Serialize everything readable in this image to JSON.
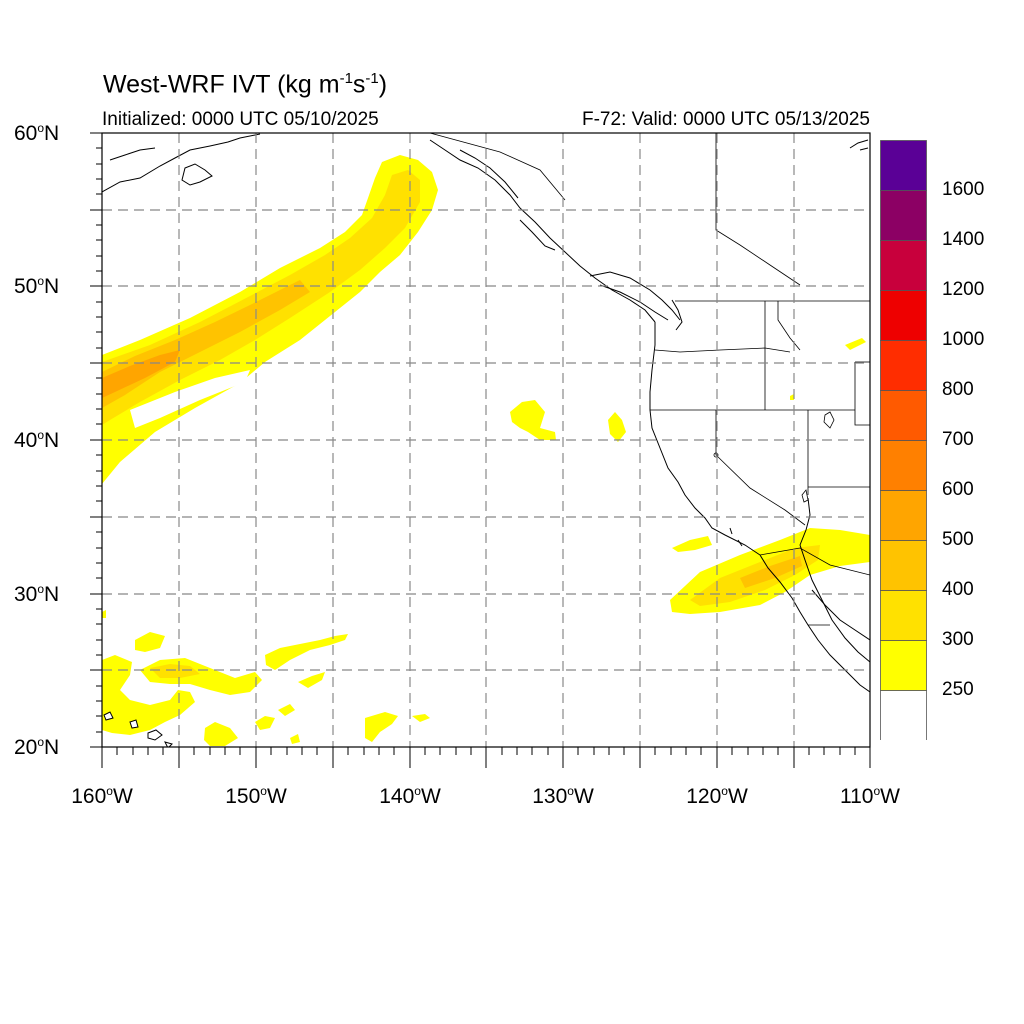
{
  "title": {
    "main": "West-WRF IVT (kg m",
    "sup1": "-1",
    "mid": "s",
    "sup2": "-1",
    "end": ")"
  },
  "subtitle_left": "Initialized: 0000 UTC 05/10/2025",
  "subtitle_right": "F-72: Valid: 0000 UTC 05/13/2025",
  "lat_labels": [
    "60",
    "50",
    "40",
    "30",
    "20"
  ],
  "lat_suffix": "N",
  "lon_labels": [
    "160",
    "150",
    "140",
    "130",
    "120",
    "110"
  ],
  "lon_suffix": "W",
  "degree_symbol": "o",
  "colorbar": {
    "labels": [
      "1600",
      "1400",
      "1200",
      "1000",
      "800",
      "700",
      "600",
      "500",
      "400",
      "300",
      "250"
    ],
    "colors": [
      "#ffffff",
      "#ffff00",
      "#ffe100",
      "#ffc300",
      "#ffa500",
      "#ff8000",
      "#ff5a00",
      "#ff2d00",
      "#ee0000",
      "#c8003c",
      "#8c0064",
      "#5a0096"
    ]
  },
  "map": {
    "extent_lon": [
      -160,
      -110
    ],
    "extent_lat": [
      20,
      60
    ],
    "grid_interval_deg": 5,
    "grid": "dashed gray",
    "map_projection": "cylindrical equidistant",
    "ivt_fill_colors": {
      "250": "#ffff00",
      "300": "#ffe100",
      "400": "#ffc300",
      "500": "#ffa500"
    }
  }
}
